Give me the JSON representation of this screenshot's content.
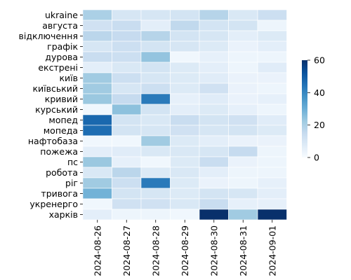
{
  "chart_data": {
    "type": "heatmap",
    "title": "",
    "xlabel": "",
    "ylabel": "",
    "x": [
      "2024-08-26",
      "2024-08-27",
      "2024-08-28",
      "2024-08-29",
      "2024-08-30",
      "2024-08-31",
      "2024-09-01"
    ],
    "y": [
      "ukraine",
      "августа",
      "відключення",
      "графік",
      "дурова",
      "екстрені",
      "київ",
      "київський",
      "кривий",
      "курський",
      "мопед",
      "мопеда",
      "нафтобаза",
      "пожежа",
      "пс",
      "робота",
      "ріг",
      "тривога",
      "укренерго",
      "харків"
    ],
    "values": [
      [
        20,
        10,
        10,
        11,
        18,
        9,
        13
      ],
      [
        12,
        14,
        6,
        16,
        11,
        11,
        3
      ],
      [
        17,
        15,
        18,
        11,
        10,
        6,
        8
      ],
      [
        10,
        13,
        11,
        10,
        8,
        4,
        6
      ],
      [
        14,
        13,
        24,
        2,
        5,
        3,
        3
      ],
      [
        6,
        9,
        11,
        8,
        6,
        3,
        7
      ],
      [
        22,
        13,
        10,
        8,
        7,
        4,
        4
      ],
      [
        22,
        10,
        13,
        8,
        12,
        4,
        3
      ],
      [
        23,
        15,
        43,
        5,
        7,
        4,
        5
      ],
      [
        2,
        25,
        11,
        6,
        8,
        5,
        3
      ],
      [
        47,
        11,
        9,
        14,
        11,
        12,
        7
      ],
      [
        46,
        11,
        10,
        12,
        10,
        11,
        8
      ],
      [
        2,
        2,
        22,
        8,
        6,
        4,
        4
      ],
      [
        6,
        7,
        9,
        9,
        10,
        15,
        3
      ],
      [
        23,
        5,
        2,
        8,
        14,
        4,
        3
      ],
      [
        9,
        17,
        8,
        9,
        6,
        3,
        3
      ],
      [
        22,
        13,
        43,
        8,
        4,
        3,
        5
      ],
      [
        29,
        11,
        10,
        8,
        11,
        10,
        6
      ],
      [
        2,
        12,
        12,
        9,
        14,
        5,
        5
      ],
      [
        6,
        3,
        3,
        2,
        60,
        22,
        60
      ]
    ],
    "vmin": 0,
    "vmax": 60,
    "colorbar_ticks": [
      0,
      20,
      40,
      60
    ],
    "colormap": "Blues",
    "colormap_stops": [
      "#f7fbff",
      "#deebf7",
      "#c6dbef",
      "#9ecae1",
      "#6baed6",
      "#4292c6",
      "#2171b5",
      "#08519c",
      "#08306b"
    ]
  }
}
